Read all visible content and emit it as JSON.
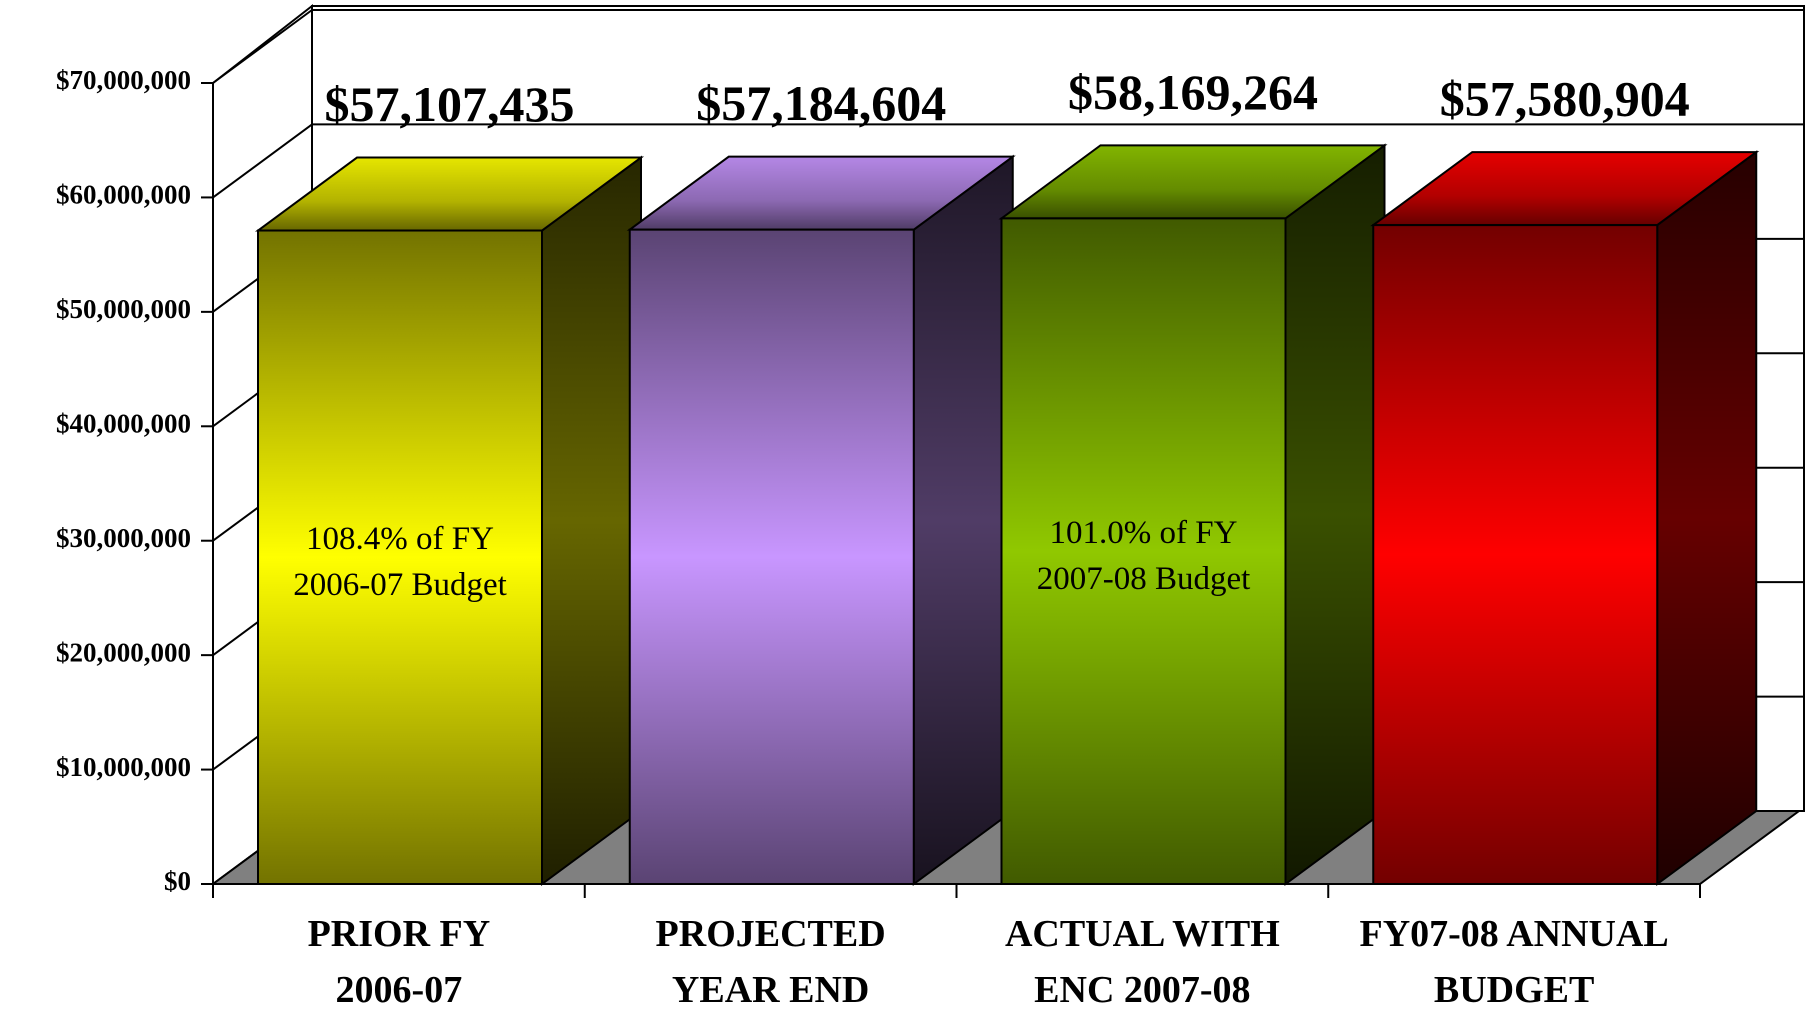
{
  "chart_data": {
    "type": "bar3d",
    "categories": [
      "PRIOR FY\n2006-07",
      "PROJECTED\nYEAR END",
      "ACTUAL WITH\nENC 2007-08",
      "FY07-08 ANNUAL\nBUDGET"
    ],
    "values": [
      57107435,
      57184604,
      58169264,
      57580904
    ],
    "value_labels": [
      "$57,107,435",
      "$57,184,604",
      "$58,169,264",
      "$57,580,904"
    ],
    "bar_notes": [
      "108.4% of FY\n2006-07 Budget",
      null,
      "101.0% of FY\n2007-08 Budget",
      null
    ],
    "colors": [
      "#ffff00",
      "#c896ff",
      "#90c800",
      "#ff0000"
    ],
    "ylim": [
      0,
      70000000
    ],
    "yticks": [
      {
        "value": 0,
        "label": "$0"
      },
      {
        "value": 10000000,
        "label": "$10,000,000"
      },
      {
        "value": 20000000,
        "label": "$20,000,000"
      },
      {
        "value": 30000000,
        "label": "$30,000,000"
      },
      {
        "value": 40000000,
        "label": "$40,000,000"
      },
      {
        "value": 50000000,
        "label": "$50,000,000"
      },
      {
        "value": 60000000,
        "label": "$60,000,000"
      },
      {
        "value": 70000000,
        "label": "$70,000,000"
      }
    ],
    "grid": true
  }
}
